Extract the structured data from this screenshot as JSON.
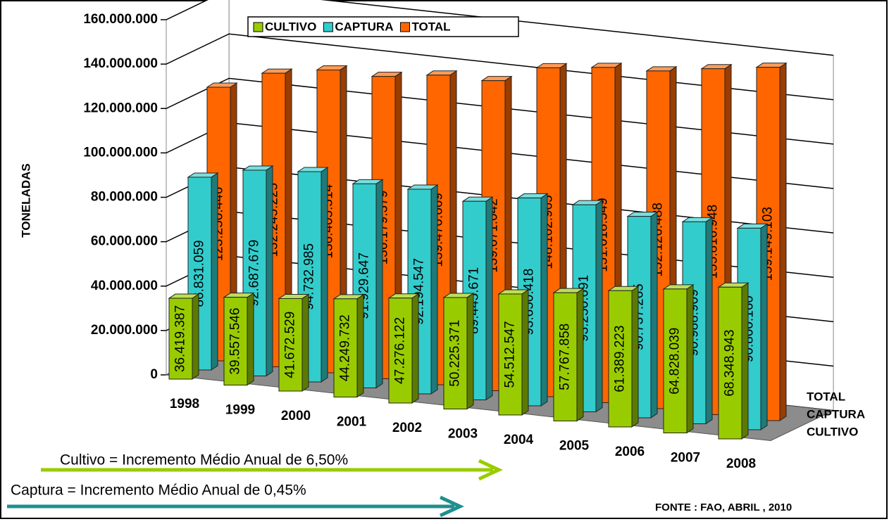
{
  "chart_data": {
    "type": "bar3d",
    "y_label": "TONELADAS",
    "categories": [
      "1998",
      "1999",
      "2000",
      "2001",
      "2002",
      "2003",
      "2004",
      "2005",
      "2006",
      "2007",
      "2008"
    ],
    "series": [
      {
        "name": "CULTIVO",
        "color": "#99cc00",
        "values": [
          36419387,
          39557546,
          41672529,
          44249732,
          47276122,
          50225371,
          54512547,
          57767858,
          61389223,
          64828039,
          68348943
        ],
        "value_labels": [
          "36.419.387",
          "39.557.546",
          "41.672.529",
          "44.249.732",
          "47.276.122",
          "50.225.371",
          "54.512.547",
          "57.767.858",
          "61.389.223",
          "64.828.039",
          "68.348.943"
        ]
      },
      {
        "name": "CAPTURA",
        "color": "#33cccc",
        "values": [
          86831059,
          92687679,
          94732985,
          91929647,
          92194547,
          89445671,
          93650418,
          93250691,
          90737265,
          90988909,
          90800160
        ],
        "value_labels": [
          "86.831.059",
          "92.687.679",
          "94.732.985",
          "91.929.647",
          "92.194.547",
          "89.445.671",
          "93.650.418",
          "93.250.691",
          "90.737.265",
          "90.988.909",
          "90.800.160"
        ]
      },
      {
        "name": "TOTAL",
        "color": "#ff6600",
        "values": [
          123250446,
          132245225,
          136405514,
          136179379,
          139470669,
          139671042,
          148162965,
          151018549,
          152126488,
          155816948,
          159149103
        ],
        "value_labels": [
          "123.250.446",
          "132.245.225",
          "136.405.514",
          "136.179.379",
          "139.470.669",
          "139.671.042",
          "148.162.965",
          "151.018.549",
          "152.126.488",
          "155.816.948",
          "159.149.103"
        ]
      }
    ],
    "ylim": [
      0,
      160000000
    ],
    "yticks": [
      0,
      {
        "value": 20000000,
        "label": "20.000.000"
      },
      {
        "value": 40000000,
        "label": "40.000.000"
      },
      {
        "value": 60000000,
        "label": "60.000.000"
      },
      {
        "value": 80000000,
        "label": "80.000.000"
      },
      {
        "value": 100000000,
        "label": "100.000.000"
      },
      {
        "value": 120000000,
        "label": "120.000.000"
      },
      {
        "value": 140000000,
        "label": "140.000.000"
      },
      {
        "value": 160000000,
        "label": "160.000.000"
      }
    ],
    "grid": true,
    "legend": "top",
    "annotations": [
      "Cultivo = Incremento Médio Anual de 6,50%",
      "Captura = Incremento Médio Anual de 0,45%",
      "FONTE : FAO, ABRIL , 2010"
    ]
  }
}
